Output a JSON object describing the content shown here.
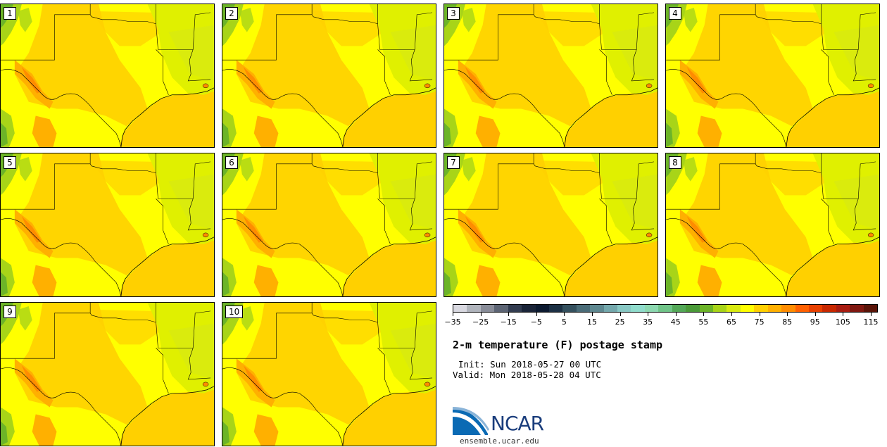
{
  "panels": [
    "1",
    "2",
    "3",
    "4",
    "5",
    "6",
    "7",
    "8",
    "9",
    "10"
  ],
  "colorbar": {
    "colors": [
      "#d8d8e0",
      "#b0b4bc",
      "#888c98",
      "#5c6474",
      "#323c50",
      "#1a2438",
      "#0c1a30",
      "#1c3044",
      "#34505e",
      "#4a6c78",
      "#5e8890",
      "#74a8ac",
      "#88c8c4",
      "#90dccc",
      "#8cd8b0",
      "#70c488",
      "#54a858",
      "#4a9a38",
      "#6cb428",
      "#a8d418",
      "#d8ea10",
      "#ffff00",
      "#ffd000",
      "#ffb000",
      "#ff8c00",
      "#ff6000",
      "#e84000",
      "#c82800",
      "#a81c10",
      "#801810",
      "#5a1408"
    ],
    "tick_labels": [
      "−35",
      "−25",
      "−15",
      "−5",
      "5",
      "15",
      "25",
      "35",
      "45",
      "55",
      "65",
      "75",
      "85",
      "95",
      "105",
      "115"
    ]
  },
  "title": "2-m temperature (F) postage stamp",
  "init": "Init: Sun 2018-05-27 00 UTC",
  "valid": "Valid: Mon 2018-05-28 04 UTC",
  "logo_text": "NCAR",
  "url": "ensemble.ucar.edu"
}
